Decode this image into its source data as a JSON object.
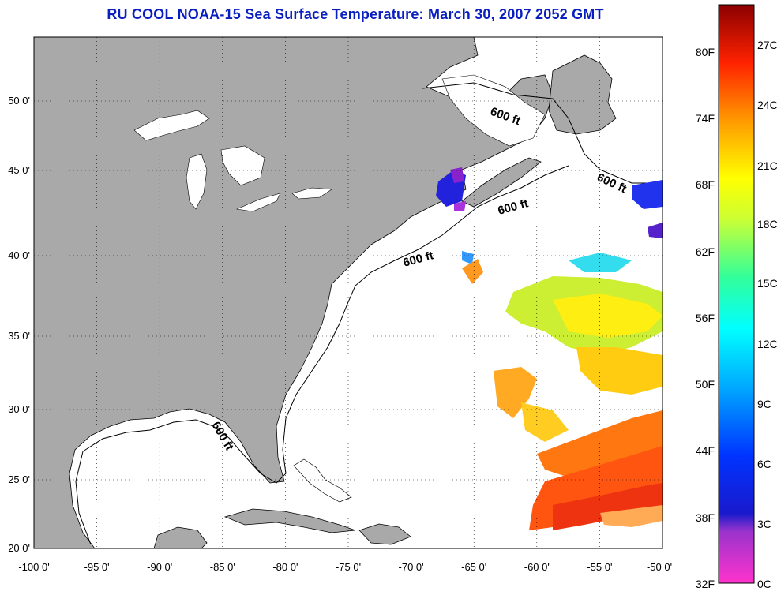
{
  "title": "RU COOL  NOAA-15  Sea Surface Temperature:  March 30, 2007 2052 GMT",
  "map": {
    "x_ticks": [
      "-100 0'",
      "-95 0'",
      "-90 0'",
      "-85 0'",
      "-80 0'",
      "-75 0'",
      "-70 0'",
      "-65 0'",
      "-60 0'",
      "-55 0'",
      "-50 0'"
    ],
    "y_ticks": [
      "50 0'",
      "45 0'",
      "40 0'",
      "35 0'",
      "30 0'",
      "25 0'",
      "20 0'"
    ],
    "contour_labels": [
      "600 ft",
      "600 ft",
      "600 ft",
      "600 ft",
      "600 ft"
    ],
    "land_color": "#a9a9a9",
    "ocean_color": "#ffffff"
  },
  "colorbar": {
    "fahrenheit_labels": [
      "80F",
      "74F",
      "68F",
      "62F",
      "56F",
      "50F",
      "44F",
      "38F",
      "32F"
    ],
    "celsius_labels": [
      "27C",
      "24C",
      "21C",
      "18C",
      "15C",
      "12C",
      "9C",
      "6C",
      "3C",
      "0C"
    ]
  }
}
